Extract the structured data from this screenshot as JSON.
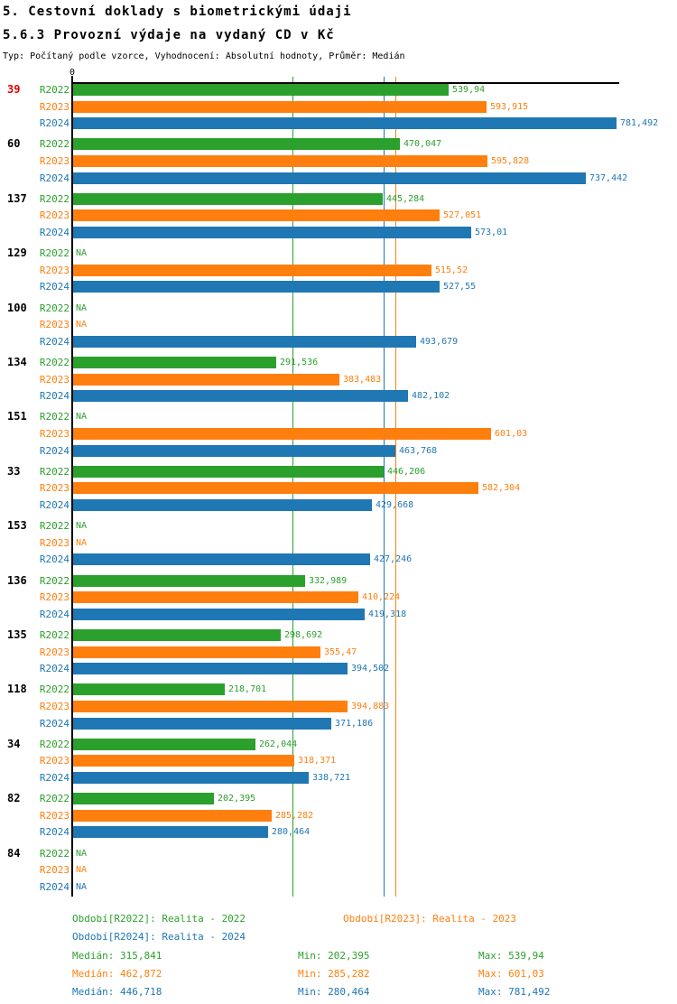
{
  "page": {
    "title": "5. Cestovní doklady s biometrickými údaji",
    "subtitle": "5.6.3 Provozní výdaje na vydaný CD v Kč",
    "meta": "Typ: Počítaný podle vzorce, Vyhodnocení: Absolutní hodnoty, Průměr: Medián",
    "zero_tick_label": "0"
  },
  "colors": {
    "r2022": "#2ca02c",
    "r2023": "#ff7f0e",
    "r2024": "#1f77b4",
    "highlight_category": "#e10000",
    "category_default": "#000000",
    "axis": "#000000"
  },
  "chart_data": {
    "type": "bar",
    "orientation": "horizontal",
    "title": "5.6.3 Provozní výdaje na vydaný CD v Kč",
    "value_unit": "Kč",
    "x_axis": {
      "min": 0,
      "max": 800,
      "tick_labels": [
        "0"
      ],
      "grid": false
    },
    "categories": [
      "39",
      "60",
      "137",
      "129",
      "100",
      "134",
      "151",
      "33",
      "153",
      "136",
      "135",
      "118",
      "34",
      "82",
      "84"
    ],
    "highlighted_category": "39",
    "missing_value_text": "NA",
    "series": [
      {
        "name": "R2022",
        "legend": "Období[R2022]: Realita - 2022",
        "color": "#2ca02c",
        "values": [
          539.94,
          470.047,
          445.284,
          null,
          null,
          291.536,
          null,
          446.206,
          null,
          332.989,
          298.692,
          218.701,
          262.044,
          202.395,
          null
        ],
        "value_labels": [
          "539,94",
          "470,047",
          "445,284",
          "NA",
          "NA",
          "291,536",
          "NA",
          "446,206",
          "NA",
          "332,989",
          "298,692",
          "218,701",
          "262,044",
          "202,395",
          "NA"
        ],
        "median": 315.841,
        "min": 202.395,
        "max": 539.94
      },
      {
        "name": "R2023",
        "legend": "Období[R2023]: Realita - 2023",
        "color": "#ff7f0e",
        "values": [
          593.915,
          595.828,
          527.051,
          515.52,
          null,
          383.483,
          601.03,
          582.304,
          null,
          410.224,
          355.47,
          394.883,
          318.371,
          285.282,
          null
        ],
        "value_labels": [
          "593,915",
          "595,828",
          "527,051",
          "515,52",
          "NA",
          "383,483",
          "601,03",
          "582,304",
          "NA",
          "410,224",
          "355,47",
          "394,883",
          "318,371",
          "285,282",
          "NA"
        ],
        "median": 462.872,
        "min": 285.282,
        "max": 601.03
      },
      {
        "name": "R2024",
        "legend": "Období[R2024]: Realita - 2024",
        "color": "#1f77b4",
        "values": [
          781.492,
          737.442,
          573.01,
          527.55,
          493.679,
          482.102,
          463.768,
          429.668,
          427.246,
          419.318,
          394.502,
          371.186,
          338.721,
          280.464,
          null
        ],
        "value_labels": [
          "781,492",
          "737,442",
          "573,01",
          "527,55",
          "493,679",
          "482,102",
          "463,768",
          "429,668",
          "427,246",
          "419,318",
          "394,502",
          "371,186",
          "338,721",
          "280,464",
          "NA"
        ],
        "median": 446.718,
        "min": 280.464,
        "max": 781.492
      }
    ],
    "median_lines_shown": true
  },
  "footer": {
    "legends": [
      "Období[R2022]: Realita - 2022",
      "Období[R2023]: Realita - 2023",
      "Období[R2024]: Realita - 2024"
    ],
    "stats": [
      {
        "median": "Medián: 315,841",
        "min": "Min: 202,395",
        "max": "Max: 539,94"
      },
      {
        "median": "Medián: 462,872",
        "min": "Min: 285,282",
        "max": "Max: 601,03"
      },
      {
        "median": "Medián: 446,718",
        "min": "Min: 280,464",
        "max": "Max: 781,492"
      }
    ]
  }
}
